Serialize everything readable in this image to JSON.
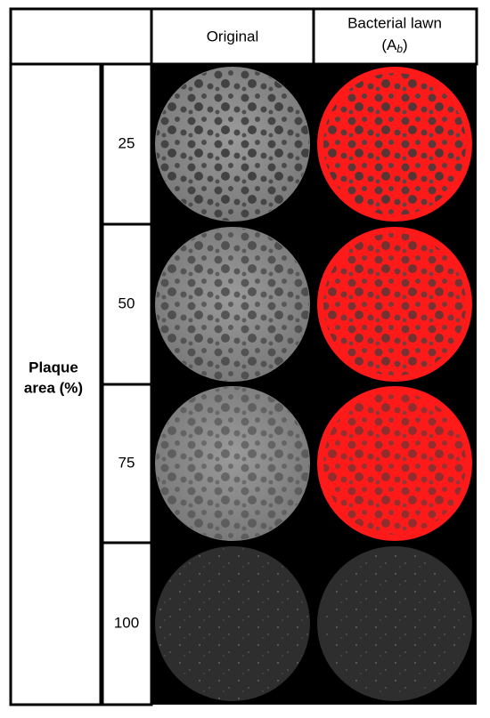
{
  "header": {
    "columns": [
      "Original",
      {
        "title": "Bacterial lawn",
        "symbol_open": "(A",
        "subscript": "b",
        "symbol_close": ")"
      }
    ]
  },
  "row_header": {
    "line1": "Plaque",
    "line2": "area (%)"
  },
  "rows": [
    25,
    50,
    75,
    100
  ]
}
